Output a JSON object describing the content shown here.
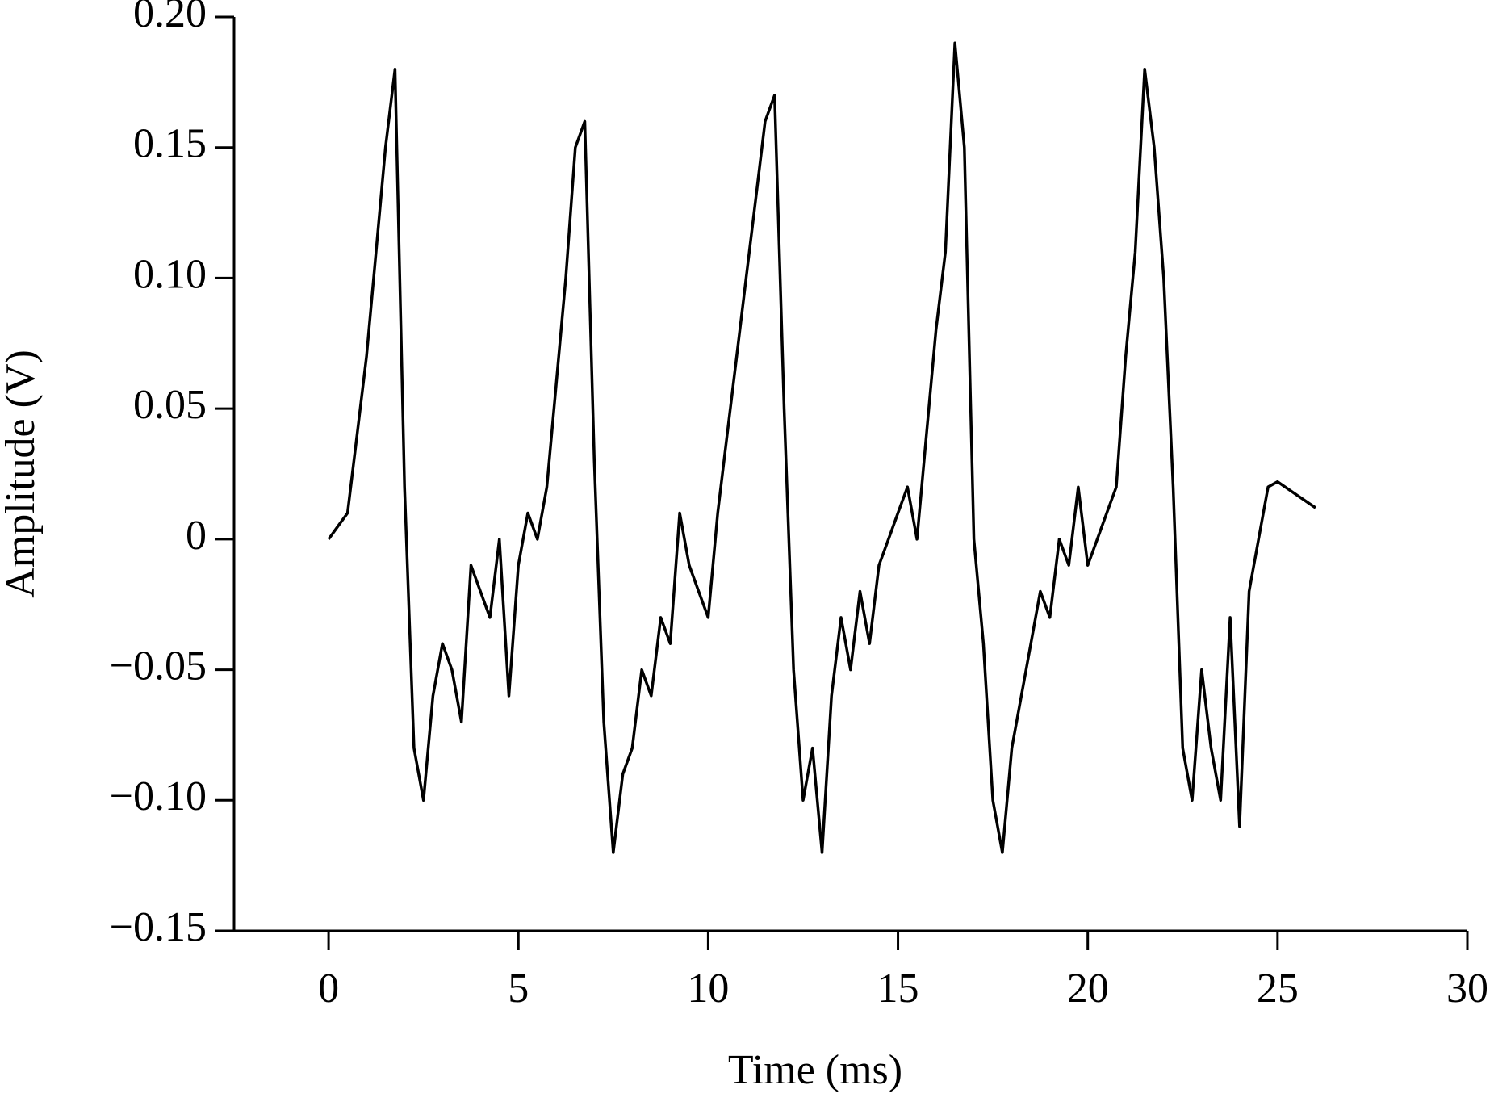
{
  "chart_data": {
    "type": "line",
    "x_label": "Time (ms)",
    "y_label": "Amplitude (V)",
    "xlim": [
      -3,
      30
    ],
    "xticks": [
      0,
      5,
      10,
      15,
      20,
      25,
      30
    ],
    "ylim": [
      -0.15,
      0.2
    ],
    "yticks": [
      {
        "value": 0.2,
        "label": "0.20"
      },
      0.15,
      {
        "value": 0.1,
        "label": "0.10"
      },
      0.05,
      0,
      {
        "value": -0.05,
        "label": "−0.05"
      },
      {
        "value": -0.1,
        "label": "−0.10"
      },
      {
        "value": -0.15,
        "label": "−0.15"
      }
    ],
    "x": [
      0,
      0.25,
      0.5,
      0.75,
      1,
      1.25,
      1.5,
      1.75,
      2,
      2.25,
      2.5,
      2.75,
      3,
      3.25,
      3.5,
      3.75,
      4,
      4.25,
      4.5,
      4.75,
      5,
      5.25,
      5.5,
      5.75,
      6,
      6.25,
      6.5,
      6.75,
      7,
      7.25,
      7.5,
      7.75,
      8,
      8.25,
      8.5,
      8.75,
      9,
      9.25,
      9.5,
      9.75,
      10,
      10.25,
      10.5,
      10.75,
      11,
      11.25,
      11.5,
      11.75,
      12,
      12.25,
      12.5,
      12.75,
      13,
      13.25,
      13.5,
      13.75,
      14,
      14.25,
      14.5,
      14.75,
      15,
      15.25,
      15.5,
      15.75,
      16,
      16.25,
      16.5,
      16.75,
      17,
      17.25,
      17.5,
      17.75,
      18,
      18.25,
      18.5,
      18.75,
      19,
      19.25,
      19.5,
      19.75,
      20,
      20.25,
      20.5,
      20.75,
      21,
      21.25,
      21.5,
      21.75,
      22,
      22.25,
      22.5,
      22.75,
      23,
      23.25,
      23.5,
      23.75,
      24,
      24.25,
      24.5,
      24.75,
      25,
      25.5,
      26
    ],
    "series": [
      {
        "name": "Amplitude",
        "color": "#000000",
        "values": [
          0,
          0.005,
          0.01,
          0.04,
          0.07,
          0.11,
          0.15,
          0.18,
          0.02,
          -0.08,
          -0.1,
          -0.06,
          -0.04,
          -0.05,
          -0.07,
          -0.01,
          -0.02,
          -0.03,
          0,
          -0.06,
          -0.01,
          0.01,
          0,
          0.02,
          0.06,
          0.1,
          0.15,
          0.16,
          0.03,
          -0.07,
          -0.12,
          -0.09,
          -0.08,
          -0.05,
          -0.06,
          -0.03,
          -0.04,
          0.01,
          -0.01,
          -0.02,
          -0.03,
          0.01,
          0.04,
          0.07,
          0.1,
          0.13,
          0.16,
          0.17,
          0.05,
          -0.05,
          -0.1,
          -0.08,
          -0.12,
          -0.06,
          -0.03,
          -0.05,
          -0.02,
          -0.04,
          -0.01,
          0,
          0.01,
          0.02,
          0,
          0.04,
          0.08,
          0.11,
          0.19,
          0.15,
          0,
          -0.04,
          -0.1,
          -0.12,
          -0.08,
          -0.06,
          -0.04,
          -0.02,
          -0.03,
          0,
          -0.01,
          0.02,
          -0.01,
          0,
          0.01,
          0.02,
          0.07,
          0.11,
          0.18,
          0.15,
          0.1,
          0.02,
          -0.08,
          -0.1,
          -0.05,
          -0.08,
          -0.1,
          -0.03,
          -0.11,
          -0.02,
          0,
          0.02,
          0.022,
          0.017,
          0.012
        ]
      }
    ]
  }
}
